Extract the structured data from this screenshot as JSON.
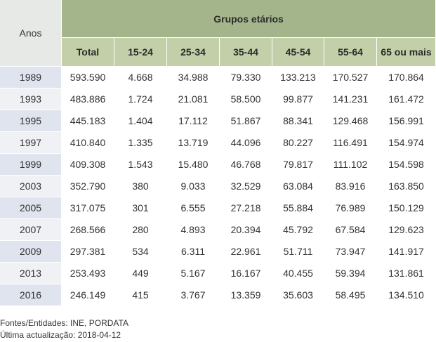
{
  "table": {
    "anos_header": "Anos",
    "group_header": "Grupos etários",
    "columns": [
      "Total",
      "15-24",
      "25-34",
      "35-44",
      "45-54",
      "55-64",
      "65 ou mais"
    ],
    "rows": [
      {
        "year": "1989",
        "values": [
          "593.590",
          "4.668",
          "34.988",
          "79.330",
          "133.213",
          "170.527",
          "170.864"
        ]
      },
      {
        "year": "1993",
        "values": [
          "483.886",
          "1.724",
          "21.081",
          "58.500",
          "99.877",
          "141.231",
          "161.472"
        ]
      },
      {
        "year": "1995",
        "values": [
          "445.183",
          "1.404",
          "17.112",
          "51.867",
          "88.341",
          "129.468",
          "156.991"
        ]
      },
      {
        "year": "1997",
        "values": [
          "410.840",
          "1.335",
          "13.719",
          "44.096",
          "80.227",
          "116.491",
          "154.974"
        ]
      },
      {
        "year": "1999",
        "values": [
          "409.308",
          "1.543",
          "15.480",
          "46.768",
          "79.817",
          "111.102",
          "154.598"
        ]
      },
      {
        "year": "2003",
        "values": [
          "352.790",
          "380",
          "9.033",
          "32.529",
          "63.084",
          "83.916",
          "163.850"
        ]
      },
      {
        "year": "2005",
        "values": [
          "317.075",
          "301",
          "6.555",
          "27.218",
          "55.884",
          "76.989",
          "150.129"
        ]
      },
      {
        "year": "2007",
        "values": [
          "268.566",
          "280",
          "4.893",
          "20.394",
          "45.792",
          "67.584",
          "129.623"
        ]
      },
      {
        "year": "2009",
        "values": [
          "297.381",
          "534",
          "6.311",
          "22.961",
          "51.711",
          "73.947",
          "141.917"
        ]
      },
      {
        "year": "2013",
        "values": [
          "253.493",
          "449",
          "5.167",
          "16.167",
          "40.455",
          "59.394",
          "131.861"
        ]
      },
      {
        "year": "2016",
        "values": [
          "246.149",
          "415",
          "3.767",
          "13.359",
          "35.603",
          "58.495",
          "134.510"
        ]
      }
    ]
  },
  "footer": {
    "sources": "Fontes/Entidades: INE, PORDATA",
    "last_update": "Última actualização: 2018-04-12"
  }
}
